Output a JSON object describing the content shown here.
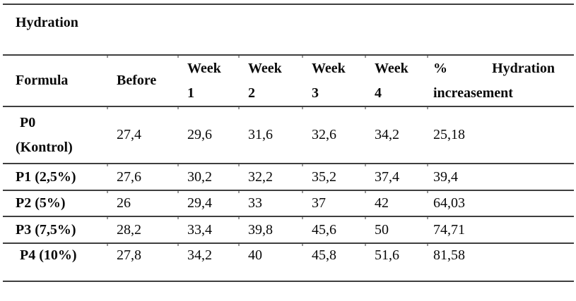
{
  "table": {
    "title": "Hydration",
    "header": {
      "formula": "Formula",
      "before": "Before",
      "week_label": "Week",
      "week_numbers": [
        "1",
        "2",
        "3",
        "4"
      ],
      "pct_line1_left": "%",
      "pct_line1_right": "Hydration",
      "pct_line2": "increasement"
    },
    "rows": [
      {
        "formula_line1": "P0",
        "formula_line2": "(Kontrol)",
        "values": [
          "27,4",
          "29,6",
          "31,6",
          "32,6",
          "34,2",
          "25,18"
        ]
      },
      {
        "formula_line1": "P1 (2,5%)",
        "values": [
          "27,6",
          "30,2",
          "32,2",
          "35,2",
          "37,4",
          "39,4"
        ]
      },
      {
        "formula_line1": "P2 (5%)",
        "values": [
          "26",
          "29,4",
          "33",
          "37",
          "42",
          "64,03"
        ]
      },
      {
        "formula_line1": "P3 (7,5%)",
        "values": [
          "28,2",
          "33,4",
          "39,8",
          "45,6",
          "50",
          "74,71"
        ]
      },
      {
        "formula_line1": "P4 (10%)",
        "values": [
          "27,8",
          "34,2",
          "40",
          "45,8",
          "51,6",
          "81,58"
        ]
      }
    ],
    "colors": {
      "rule": "#3e3e3e",
      "tick": "#9a9a9a",
      "text": "#0a0a0a",
      "background": "#ffffff"
    }
  }
}
